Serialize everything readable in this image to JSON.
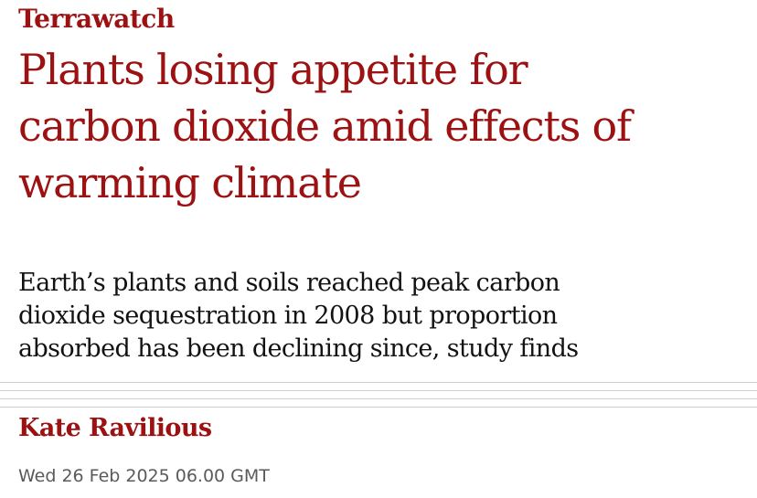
{
  "article": {
    "kicker": "Terrawatch",
    "headline_lines": [
      "Plants losing appetite for",
      "carbon dioxide amid effects of",
      "warming climate"
    ],
    "standfirst_lines": [
      "Earth’s plants and soils reached peak carbon",
      "dioxide sequestration in 2008 but proportion",
      "absorbed has been declining since, study finds"
    ],
    "byline": "Kate Ravilious",
    "dateline": "Wed 26 Feb 2025 06.00 GMT"
  },
  "colors": {
    "accent": "#9c1111",
    "body_text": "#121212",
    "meta_text": "#5a5a5a",
    "rule": "#cfcfcf"
  }
}
